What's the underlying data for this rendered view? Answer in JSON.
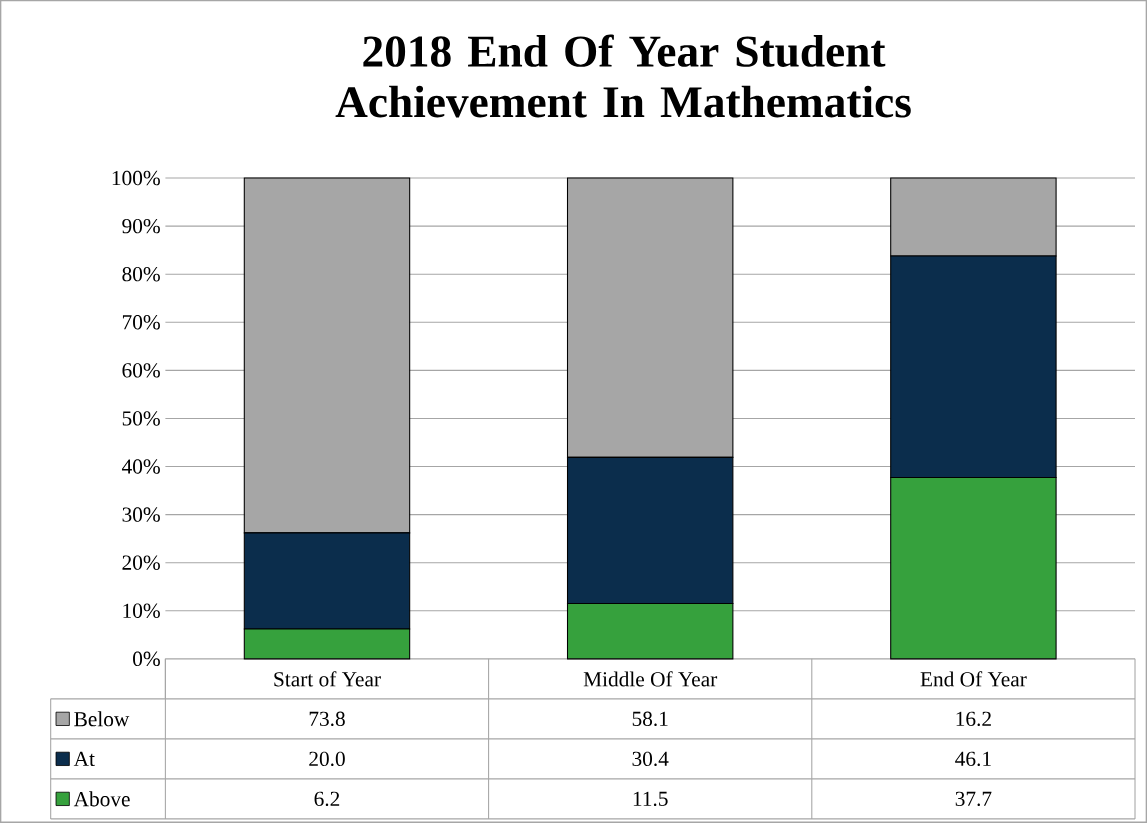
{
  "chart_data": {
    "type": "bar",
    "title": "2018 End Of Year Student Achievement In Mathematics",
    "categories": [
      "Start of Year",
      "Middle Of Year",
      "End Of Year"
    ],
    "stacked": true,
    "series": [
      {
        "name": "Above",
        "color": "#36a13d",
        "values": [
          6.2,
          11.5,
          37.7
        ],
        "value_labels": [
          "6.2",
          "11.5",
          "37.7"
        ]
      },
      {
        "name": "At",
        "color": "#0b2d4c",
        "values": [
          20.0,
          30.4,
          46.1
        ],
        "value_labels": [
          "20.0",
          "30.4",
          "46.1"
        ]
      },
      {
        "name": "Below",
        "color": "#a6a6a6",
        "values": [
          73.8,
          58.1,
          16.2
        ],
        "value_labels": [
          "73.8",
          "58.1",
          "16.2"
        ]
      }
    ],
    "ylim": [
      0,
      100
    ],
    "yticks": [
      {
        "value": 0,
        "label": "0%"
      },
      {
        "value": 10,
        "label": "10%"
      },
      {
        "value": 20,
        "label": "20%"
      },
      {
        "value": 30,
        "label": "30%"
      },
      {
        "value": 40,
        "label": "40%"
      },
      {
        "value": 50,
        "label": "50%"
      },
      {
        "value": 60,
        "label": "60%"
      },
      {
        "value": 70,
        "label": "70%"
      },
      {
        "value": 80,
        "label": "80%"
      },
      {
        "value": 90,
        "label": "90%"
      },
      {
        "value": 100,
        "label": "100%"
      }
    ],
    "grid": "y",
    "legend": "bottom"
  }
}
